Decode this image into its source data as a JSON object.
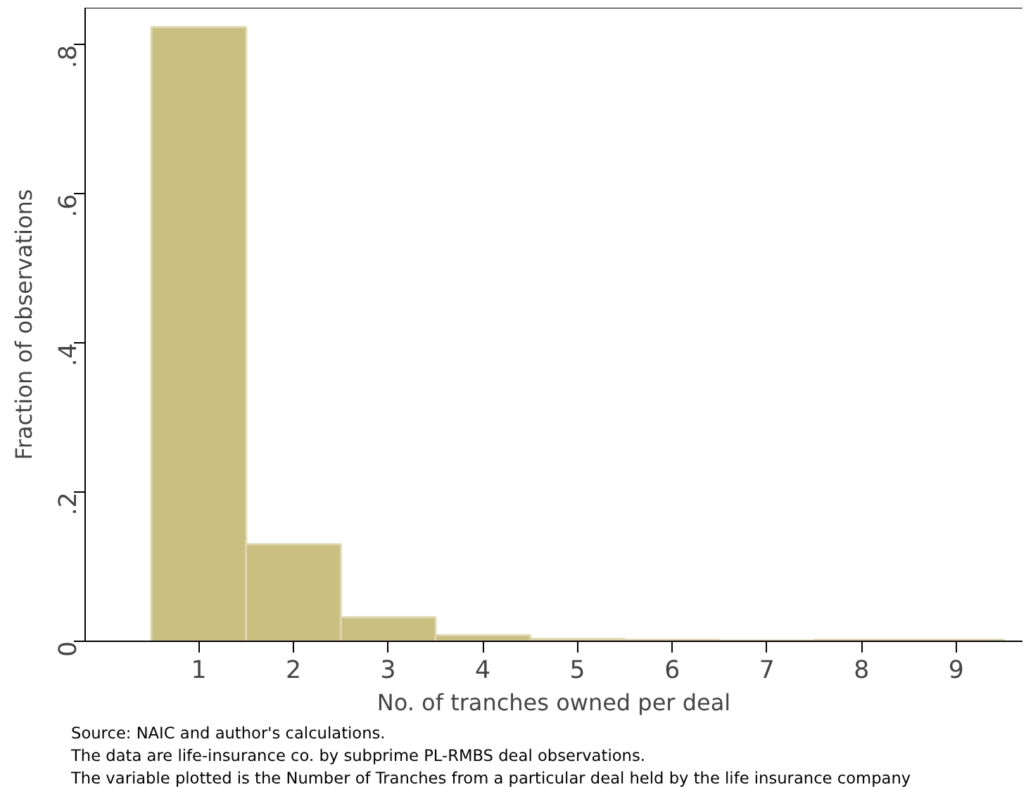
{
  "chart_data": {
    "type": "histogram",
    "xlabel": "No. of tranches owned per deal",
    "ylabel": "Fraction of observations",
    "bins": [
      0.5,
      1.5,
      2.5,
      3.5,
      4.5,
      5.5,
      6.5,
      7.5,
      8.5,
      9.5
    ],
    "values": [
      0.824,
      0.13,
      0.032,
      0.008,
      0.003,
      0.002,
      0.001,
      0.002,
      0.002
    ],
    "color": "#c8bf80",
    "xlim": [
      -0.2,
      9.7
    ],
    "ylim": [
      0,
      0.85
    ],
    "xticks": [
      1,
      2,
      3,
      4,
      5,
      6,
      7,
      8,
      9
    ],
    "yticks": [
      {
        "value": 0,
        "label": "0"
      },
      {
        "value": 0.2,
        "label": ".2"
      },
      {
        "value": 0.4,
        "label": ".4"
      },
      {
        "value": 0.6,
        "label": ".6"
      },
      {
        "value": 0.8,
        "label": ".8"
      }
    ],
    "grid": false,
    "annotations": [
      "Source: NAIC and author's calculations.",
      "The data are life-insurance co. by subprime PL-RMBS deal observations.",
      "The variable plotted is the Number of Tranches from a particular deal held by the life insurance company"
    ]
  }
}
